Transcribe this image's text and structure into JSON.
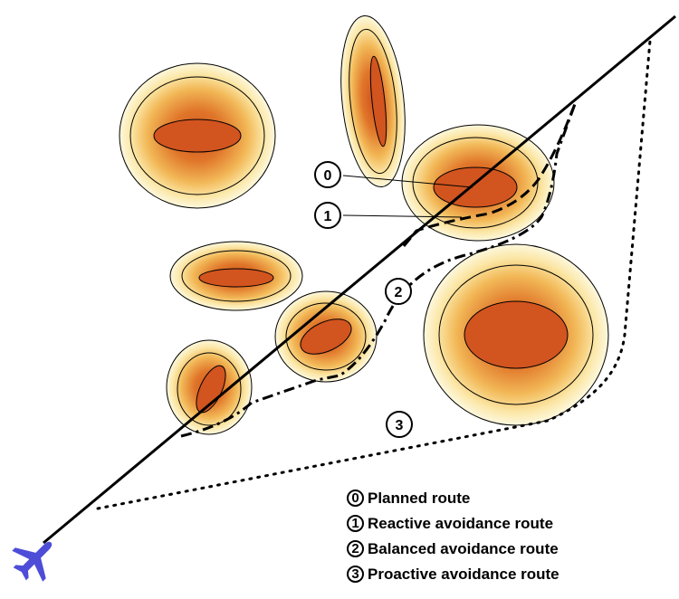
{
  "colors": {
    "cell_core": "#d2541f",
    "cell_mid": "#e9962f",
    "cell_edge": "#fdf5d2",
    "aircraft": "#4d4dd8",
    "route": "#000000"
  },
  "icons": {
    "aircraft": "airplane-icon"
  },
  "route_markers": [
    "0",
    "1",
    "2",
    "3"
  ],
  "legend": [
    {
      "num": "0",
      "label": "Planned route"
    },
    {
      "num": "1",
      "label": "Reactive avoidance route"
    },
    {
      "num": "2",
      "label": "Balanced avoidance route"
    },
    {
      "num": "3",
      "label": "Proactive avoidance route"
    }
  ]
}
